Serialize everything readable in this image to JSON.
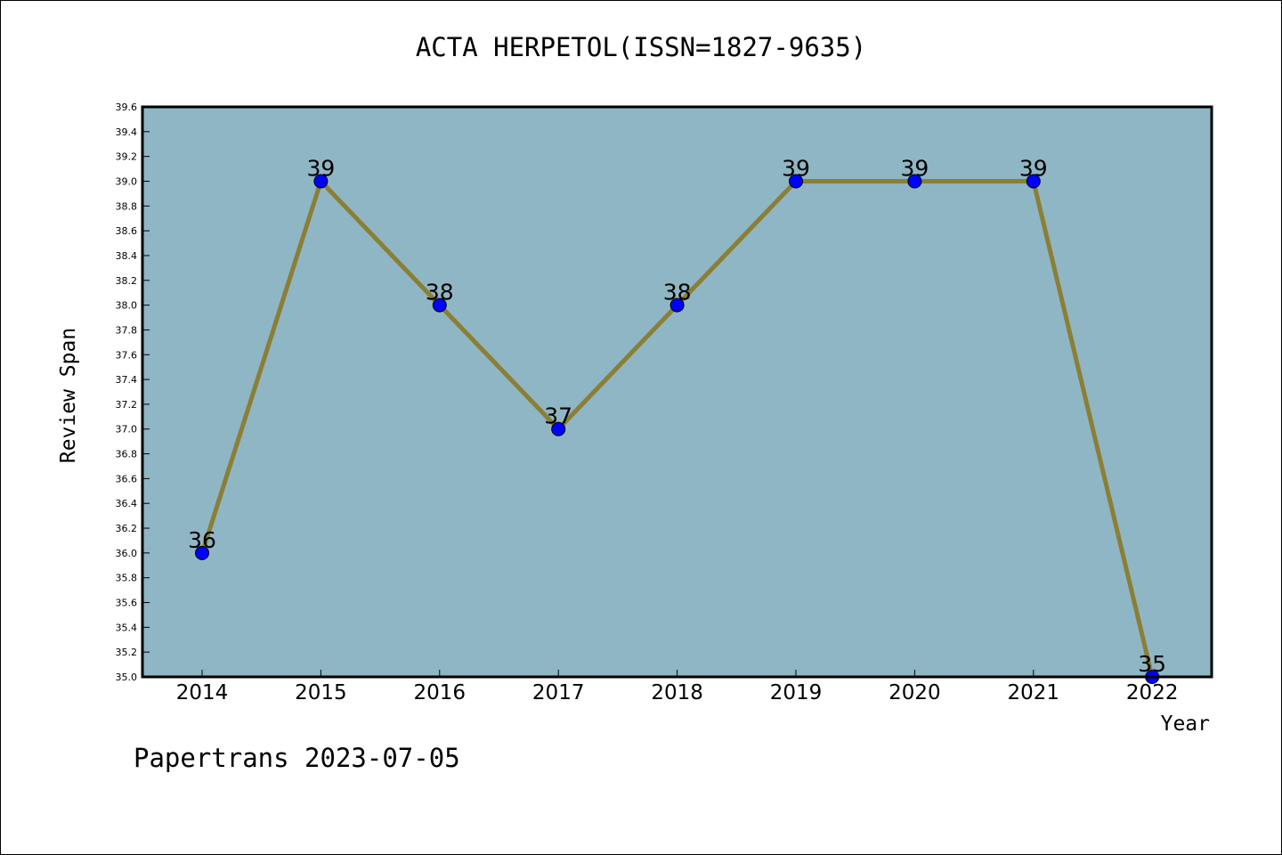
{
  "chart_data": {
    "type": "line",
    "title": "ACTA HERPETOL(ISSN=1827-9635)",
    "xlabel": "Year",
    "ylabel": "Review Span",
    "categories": [
      "2014",
      "2015",
      "2016",
      "2017",
      "2018",
      "2019",
      "2020",
      "2021",
      "2022"
    ],
    "series": [
      {
        "values": [
          36,
          39,
          38,
          37,
          38,
          39,
          39,
          39,
          35
        ]
      }
    ],
    "data_labels": [
      "36",
      "39",
      "38",
      "37",
      "38",
      "39",
      "39",
      "39",
      "35"
    ],
    "ylim": [
      35.0,
      39.6
    ],
    "yticks": [
      "35.0",
      "35.2",
      "35.4",
      "35.6",
      "35.8",
      "36.0",
      "36.2",
      "36.4",
      "36.6",
      "36.8",
      "37.0",
      "37.2",
      "37.4",
      "37.6",
      "37.8",
      "38.0",
      "38.2",
      "38.4",
      "38.6",
      "38.8",
      "39.0",
      "39.2",
      "39.4",
      "39.6"
    ],
    "grid": false,
    "colors": {
      "plot_background": "#8fb6c4",
      "line": "#8b7f35",
      "marker": "#0000ff"
    }
  },
  "footer": "Papertrans 2023-07-05"
}
